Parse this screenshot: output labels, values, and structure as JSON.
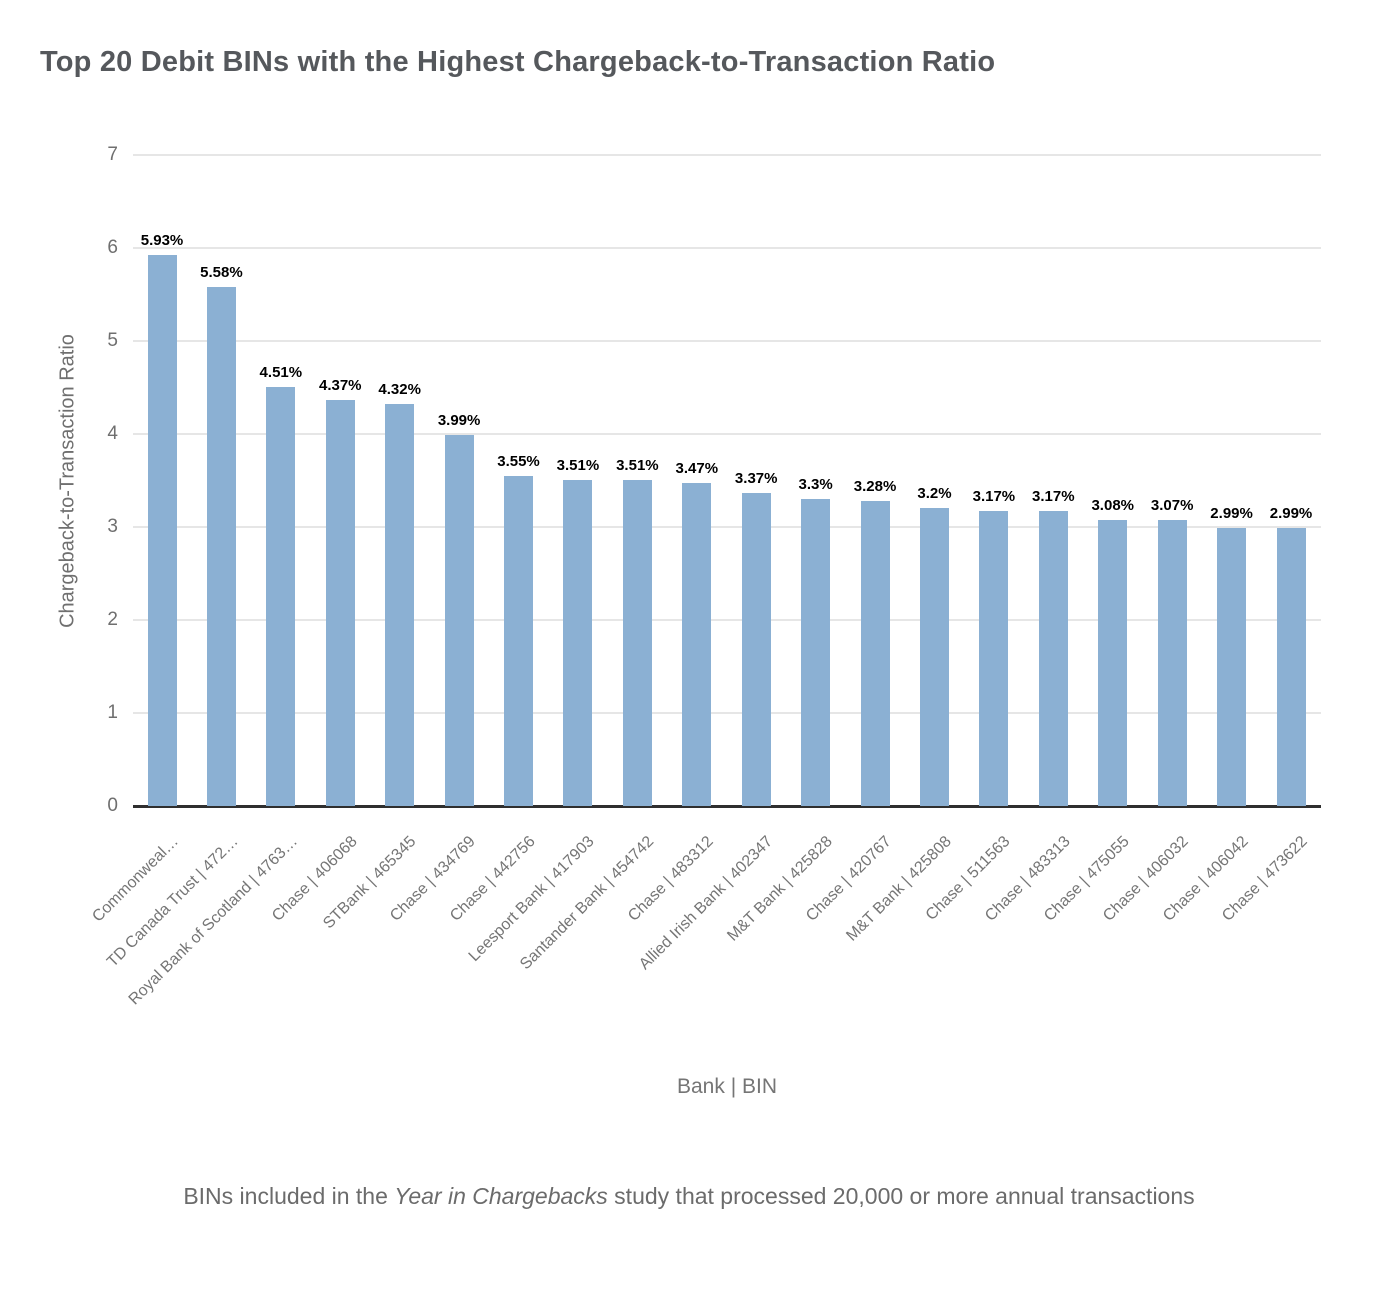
{
  "chart_data": {
    "type": "bar",
    "title": "Top 20 Debit BINs with the Highest Chargeback-to-Transaction Ratio",
    "xlabel": "Bank | BIN",
    "ylabel": "Chargeback-to-Transaction Ratio",
    "ylim": [
      0,
      7
    ],
    "yticks": [
      0,
      1,
      2,
      3,
      4,
      5,
      6,
      7
    ],
    "grid": true,
    "legend": "none",
    "bar_color": "#8bb0d3",
    "gridline_color": "#e6e6e6",
    "axis_line_color": "#2f2f2f",
    "categories": [
      "Commonweal…",
      "TD Canada Trust | 472…",
      "Royal Bank of Scotland | 4763…",
      "Chase | 406068",
      "STBank | 465345",
      "Chase | 434769",
      "Chase | 442756",
      "Leesport Bank | 417903",
      "Santander Bank | 454742",
      "Chase | 483312",
      "Allied Irish Bank | 402347",
      "M&T Bank | 425828",
      "Chase | 420767",
      "M&T Bank | 425808",
      "Chase | 511563",
      "Chase | 483313",
      "Chase | 475055",
      "Chase | 406032",
      "Chase | 406042",
      "Chase | 473622"
    ],
    "values": [
      5.93,
      5.58,
      4.51,
      4.37,
      4.32,
      3.99,
      3.55,
      3.51,
      3.51,
      3.47,
      3.37,
      3.3,
      3.28,
      3.2,
      3.17,
      3.17,
      3.08,
      3.07,
      2.99,
      2.99
    ],
    "value_labels": [
      "5.93%",
      "5.58%",
      "4.51%",
      "4.37%",
      "4.32%",
      "3.99%",
      "3.55%",
      "3.51%",
      "3.51%",
      "3.47%",
      "3.37%",
      "3.3%",
      "3.28%",
      "3.2%",
      "3.17%",
      "3.17%",
      "3.08%",
      "3.07%",
      "2.99%",
      "2.99%"
    ]
  },
  "footer": {
    "prefix": "BINs included in the ",
    "italic": "Year in Chargebacks",
    "suffix": " study that processed 20,000 or more annual transactions"
  }
}
